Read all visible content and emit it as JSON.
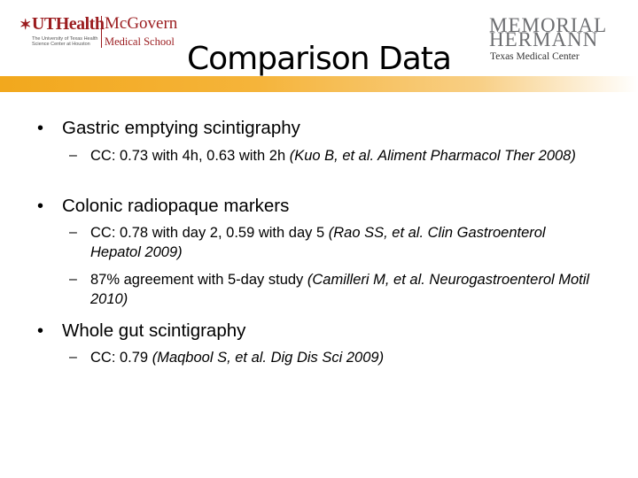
{
  "logos": {
    "left_primary": "UTHealth",
    "left_subtitle": "The University of Texas Health Science Center at Houston",
    "left_school_name": "McGovern",
    "left_school_sub": "Medical School",
    "right_line1": "MEMORIAL",
    "right_line2": "HERMANN",
    "right_line3": "Texas Medical Center"
  },
  "slide": {
    "title": "Comparison Data",
    "bullet_char": "•",
    "sub_bullet_char": "–",
    "items": [
      {
        "text": "Gastric emptying scintigraphy",
        "subs": [
          {
            "text": "CC: 0.73 with 4h, 0.63 with 2h ",
            "cite": "(Kuo B, et al. Aliment Pharmacol Ther 2008)"
          }
        ]
      },
      {
        "text": "Colonic radiopaque markers",
        "subs": [
          {
            "text": "CC: 0.78 with day 2, 0.59 with day 5 ",
            "cite": "(Rao SS, et al. Clin Gastroenterol Hepatol 2009)"
          },
          {
            "text": "87% agreement with 5-day study ",
            "cite": "(Camilleri M, et al. Neurogastroenterol Motil 2010)"
          }
        ]
      },
      {
        "text": "Whole gut scintigraphy",
        "subs": [
          {
            "text": "CC: 0.79 ",
            "cite": "(Maqbool S, et al. Dig Dis Sci 2009)"
          }
        ]
      }
    ]
  },
  "colors": {
    "accent_bar": "#f2a81d",
    "ut_red": "#9b1c1f",
    "mh_gray": "#6d6e71"
  }
}
